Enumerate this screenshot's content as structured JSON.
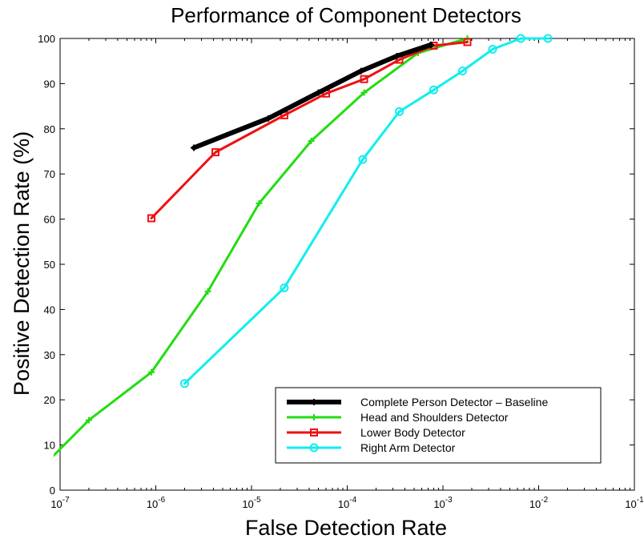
{
  "chart_data": {
    "type": "line",
    "title": "Performance of Component Detectors",
    "xlabel": "False Detection Rate",
    "ylabel": "Positive Detection Rate (%)",
    "xscale": "log",
    "xlim": [
      1e-07,
      0.1
    ],
    "ylim": [
      0,
      100
    ],
    "x_ticks": [
      1e-07,
      1e-06,
      1e-05,
      0.0001,
      0.001,
      0.01,
      0.1
    ],
    "x_tick_labels": [
      {
        "base": "10",
        "exp": "-7"
      },
      {
        "base": "10",
        "exp": "-6"
      },
      {
        "base": "10",
        "exp": "-5"
      },
      {
        "base": "10",
        "exp": "-4"
      },
      {
        "base": "10",
        "exp": "-3"
      },
      {
        "base": "10",
        "exp": "-2"
      },
      {
        "base": "10",
        "exp": "-1"
      }
    ],
    "y_ticks": [
      0,
      10,
      20,
      30,
      40,
      50,
      60,
      70,
      80,
      90,
      100
    ],
    "y_tick_labels": [
      "0",
      "10",
      "20",
      "30",
      "40",
      "50",
      "60",
      "70",
      "80",
      "90",
      "100"
    ],
    "grid": false,
    "legend_position": "bottom-right",
    "series": [
      {
        "name": "Complete Person Detector – Baseline",
        "color": "#000000",
        "marker": "plus",
        "x": [
          2.5e-06,
          1.5e-05,
          5e-05,
          0.00014,
          0.00033,
          0.00075
        ],
        "y": [
          75.8,
          82.3,
          88.0,
          92.8,
          96.1,
          98.6
        ]
      },
      {
        "name": "Head and Shoulders Detector",
        "color": "#22dd11",
        "marker": "plus",
        "x": [
          7e-08,
          2e-07,
          9e-07,
          3.5e-06,
          1.2e-05,
          4.2e-05,
          0.00015,
          0.00055,
          0.0018
        ],
        "y": [
          5.8,
          15.5,
          26.1,
          44.0,
          63.5,
          77.3,
          88.0,
          96.8,
          100.0
        ]
      },
      {
        "name": "Lower Body Detector",
        "color": "#ee1111",
        "marker": "square",
        "x": [
          9e-07,
          4.2e-06,
          2.2e-05,
          6e-05,
          0.00015,
          0.00035,
          0.0008,
          0.0018
        ],
        "y": [
          60.2,
          74.8,
          83.0,
          87.8,
          91.0,
          95.3,
          98.4,
          99.2
        ]
      },
      {
        "name": "Right Arm Detector",
        "color": "#11eeee",
        "marker": "circle",
        "x": [
          2e-06,
          2.2e-05,
          0.000145,
          0.00035,
          0.0008,
          0.0016,
          0.0033,
          0.0065,
          0.0125
        ],
        "y": [
          23.6,
          44.8,
          73.2,
          83.8,
          88.6,
          92.8,
          97.6,
          100.0,
          100.0
        ]
      }
    ]
  }
}
